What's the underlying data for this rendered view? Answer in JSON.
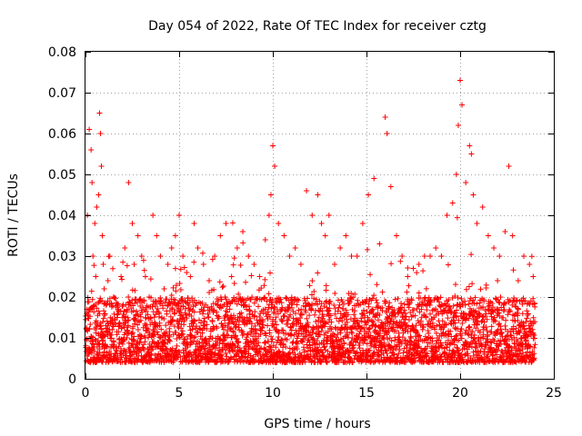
{
  "chart_data": {
    "type": "scatter",
    "title": "Day 054 of 2022, Rate Of TEC Index for receiver cztg",
    "xlabel": "GPS time / hours",
    "ylabel": "ROTI / TECUs",
    "xlim": [
      0,
      25
    ],
    "ylim": [
      0,
      0.08
    ],
    "xticks": [
      0,
      5,
      10,
      15,
      20,
      25
    ],
    "yticks": [
      0,
      0.01,
      0.02,
      0.03,
      0.04,
      0.05,
      0.06,
      0.07,
      0.08
    ],
    "xtick_labels": [
      "0",
      "5",
      "10",
      "15",
      "20",
      "25"
    ],
    "ytick_labels": [
      "0",
      "0.01",
      "0.02",
      "0.03",
      "0.04",
      "0.05",
      "0.06",
      "0.07",
      "0.08"
    ],
    "grid": true,
    "marker": "+",
    "colors": {
      "series": "#ff0000",
      "grid": "#a0a0a0",
      "axis": "#000000"
    },
    "series": [
      {
        "name": "ROTI",
        "note": "Dense cloud of points every ~30 s across 0–24 h, bulk between 0.005 and 0.02 TECU/min; representative sample listed",
        "x": [
          0.05,
          0.1,
          0.2,
          0.3,
          0.35,
          0.4,
          0.5,
          0.55,
          0.6,
          0.7,
          0.75,
          0.8,
          0.85,
          0.9,
          0.95,
          1.0,
          1.1,
          1.2,
          1.3,
          1.5,
          1.7,
          1.9,
          2.1,
          2.3,
          2.5,
          2.6,
          2.8,
          3.0,
          3.2,
          3.4,
          3.6,
          3.8,
          4.0,
          4.2,
          4.4,
          4.6,
          4.8,
          5.0,
          5.2,
          5.4,
          5.6,
          5.8,
          6.0,
          6.3,
          6.6,
          6.9,
          7.2,
          7.5,
          7.8,
          8.1,
          8.4,
          8.7,
          9.0,
          9.3,
          9.6,
          9.8,
          9.9,
          10.0,
          10.1,
          10.3,
          10.6,
          10.9,
          11.2,
          11.5,
          11.8,
          12.1,
          12.4,
          12.6,
          12.8,
          13.0,
          13.3,
          13.6,
          13.9,
          14.2,
          14.5,
          14.8,
          15.1,
          15.4,
          15.7,
          16.0,
          16.1,
          16.3,
          16.6,
          16.9,
          17.2,
          17.5,
          17.8,
          18.1,
          18.4,
          18.7,
          19.0,
          19.3,
          19.6,
          19.8,
          19.9,
          20.0,
          20.1,
          20.3,
          20.5,
          20.6,
          20.7,
          20.9,
          21.2,
          21.5,
          21.8,
          22.1,
          22.4,
          22.6,
          22.8,
          23.1,
          23.4,
          23.7,
          23.9
        ],
        "y": [
          0.012,
          0.04,
          0.061,
          0.056,
          0.048,
          0.03,
          0.038,
          0.025,
          0.042,
          0.045,
          0.065,
          0.06,
          0.052,
          0.035,
          0.028,
          0.022,
          0.018,
          0.024,
          0.03,
          0.02,
          0.015,
          0.025,
          0.032,
          0.048,
          0.038,
          0.028,
          0.035,
          0.03,
          0.025,
          0.02,
          0.04,
          0.035,
          0.03,
          0.022,
          0.028,
          0.032,
          0.035,
          0.04,
          0.03,
          0.026,
          0.025,
          0.038,
          0.032,
          0.028,
          0.024,
          0.03,
          0.035,
          0.038,
          0.025,
          0.032,
          0.036,
          0.03,
          0.028,
          0.025,
          0.034,
          0.04,
          0.045,
          0.057,
          0.052,
          0.038,
          0.035,
          0.03,
          0.032,
          0.028,
          0.046,
          0.04,
          0.045,
          0.038,
          0.035,
          0.04,
          0.028,
          0.032,
          0.035,
          0.03,
          0.03,
          0.038,
          0.045,
          0.049,
          0.033,
          0.064,
          0.06,
          0.047,
          0.035,
          0.03,
          0.025,
          0.027,
          0.028,
          0.03,
          0.03,
          0.032,
          0.03,
          0.04,
          0.043,
          0.05,
          0.062,
          0.073,
          0.067,
          0.048,
          0.057,
          0.055,
          0.045,
          0.038,
          0.042,
          0.035,
          0.032,
          0.03,
          0.036,
          0.052,
          0.035,
          0.024,
          0.03,
          0.028,
          0.025
        ]
      }
    ]
  }
}
